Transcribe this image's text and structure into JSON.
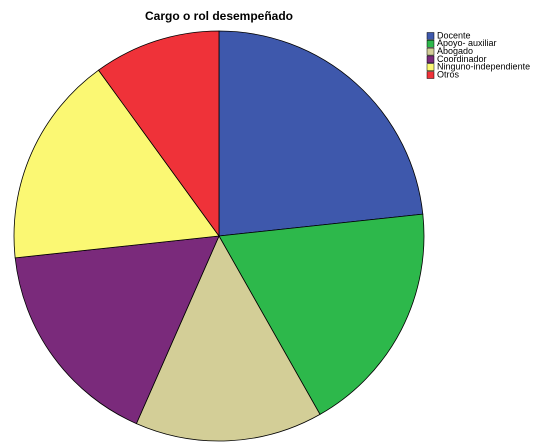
{
  "chart_data": {
    "type": "pie",
    "title": "Cargo o rol desempeñado",
    "categories": [
      "Docente",
      "Apoyo- auxiliar",
      "Abogado",
      "Coordinador",
      "Ninguno-independiente",
      "Otros"
    ],
    "values": [
      23.3,
      18.5,
      14.8,
      16.7,
      16.7,
      10.0
    ],
    "colors": [
      "#3e58ac",
      "#2db84b",
      "#d3ce97",
      "#7a2a7b",
      "#fbf873",
      "#ef3239"
    ],
    "legend": "top-right"
  }
}
